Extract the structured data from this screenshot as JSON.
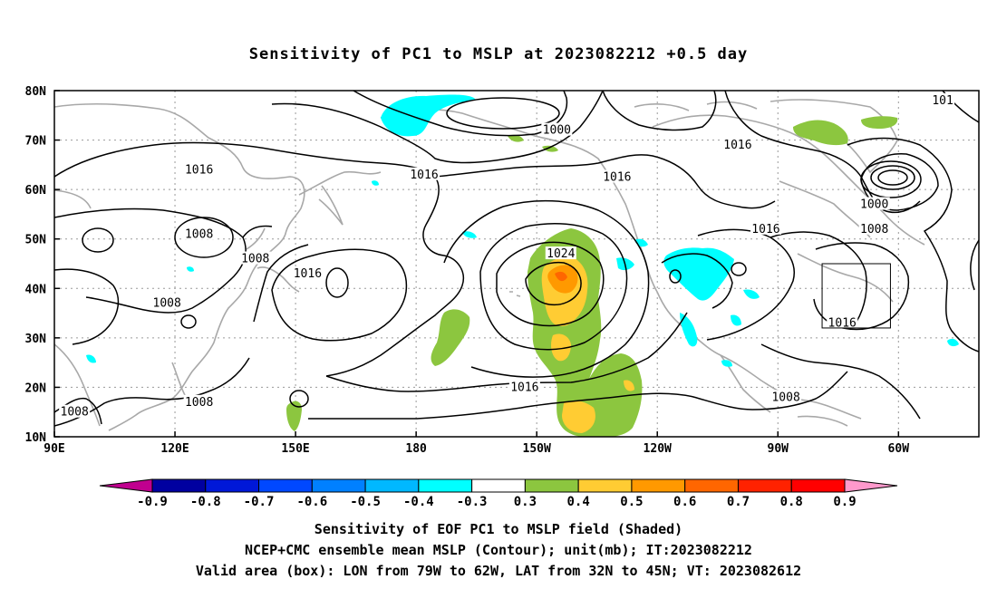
{
  "title": "Sensitivity of PC1 to MSLP at 2023082212 +0.5 day",
  "lat_labels": [
    "80N",
    "70N",
    "60N",
    "50N",
    "40N",
    "30N",
    "20N",
    "10N"
  ],
  "lon_labels": [
    "90E",
    "120E",
    "150E",
    "180",
    "150W",
    "120W",
    "90W",
    "60W"
  ],
  "colorbar": {
    "tick_labels": [
      "-0.9",
      "-0.8",
      "-0.7",
      "-0.6",
      "-0.5",
      "-0.4",
      "-0.3",
      "0.3",
      "0.4",
      "0.5",
      "0.6",
      "0.7",
      "0.8",
      "0.9"
    ],
    "colors": [
      "#c0008f",
      "#0000a0",
      "#0018d8",
      "#0048ff",
      "#0080ff",
      "#00b8ff",
      "#00ffff",
      "#ffffff",
      "#8cc63f",
      "#ffcc33",
      "#ff9900",
      "#ff6600",
      "#ff2200",
      "#ff0000",
      "#ff99cc"
    ]
  },
  "contour_labels": [
    {
      "text": "1000",
      "lon": -145,
      "lat": 72
    },
    {
      "text": "1016",
      "lon": -178,
      "lat": 63
    },
    {
      "text": "1016",
      "lon": -130,
      "lat": 62.5
    },
    {
      "text": "1016",
      "lon": -100,
      "lat": 69
    },
    {
      "text": "1016",
      "lon": 126,
      "lat": 64
    },
    {
      "text": "1008",
      "lon": 126,
      "lat": 51
    },
    {
      "text": "1008",
      "lon": 140,
      "lat": 46
    },
    {
      "text": "1016",
      "lon": 153,
      "lat": 43
    },
    {
      "text": "1008",
      "lon": 118,
      "lat": 37
    },
    {
      "text": "1024",
      "lon": -144,
      "lat": 47
    },
    {
      "text": "1016",
      "lon": -153,
      "lat": 20
    },
    {
      "text": "1016",
      "lon": -93,
      "lat": 52
    },
    {
      "text": "1000",
      "lon": -66,
      "lat": 57
    },
    {
      "text": "1008",
      "lon": -66,
      "lat": 52
    },
    {
      "text": "1016",
      "lon": -74,
      "lat": 33
    },
    {
      "text": "1008",
      "lon": -88,
      "lat": 18
    },
    {
      "text": "1008",
      "lon": 126,
      "lat": 17
    },
    {
      "text": "1008",
      "lon": 95,
      "lat": 15
    },
    {
      "text": "101",
      "lon": -49,
      "lat": 78
    }
  ],
  "valid_box": {
    "lon_min": -79,
    "lon_max": -62,
    "lat_min": 32,
    "lat_max": 45
  },
  "footer": {
    "line1": "Sensitivity of EOF PC1 to MSLP field (Shaded)",
    "line2": "NCEP+CMC ensemble mean MSLP (Contour); unit(mb); IT:2023082212",
    "line3": "Valid area (box): LON from 79W to 62W, LAT from 32N to 45N; VT: 2023082612"
  }
}
